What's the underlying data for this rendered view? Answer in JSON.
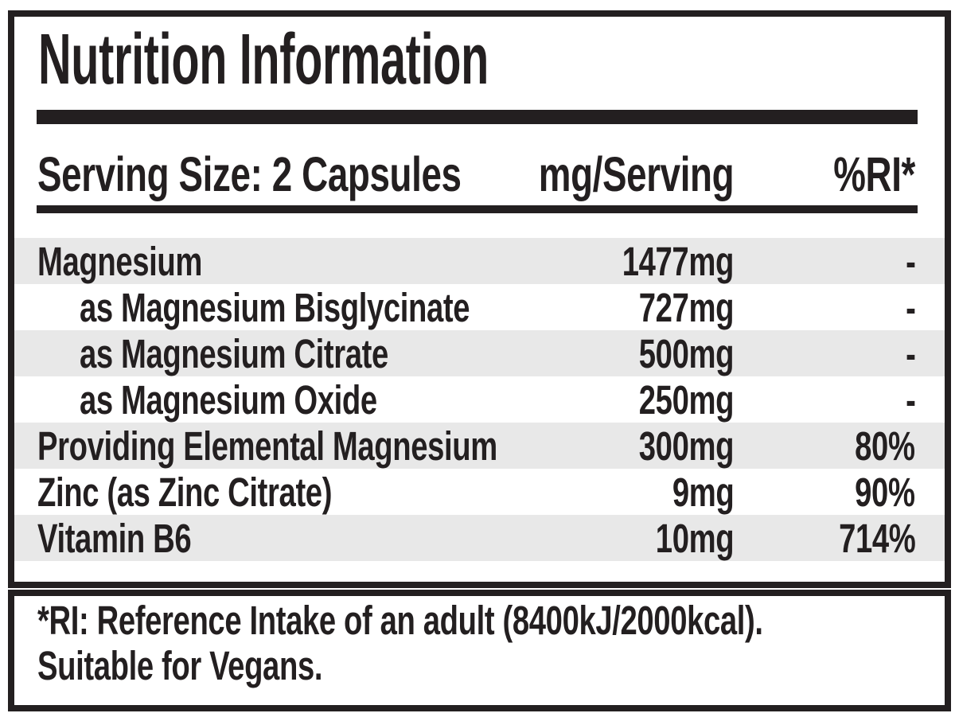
{
  "label": {
    "title": "Nutrition Information",
    "header": {
      "serving": "Serving Size: 2 Capsules",
      "amount": "mg/Serving",
      "ri": "%RI*"
    },
    "rows": [
      {
        "name": "Magnesium",
        "amount": "1477mg",
        "ri": "-"
      },
      {
        "name": "as Magnesium Bisglycinate",
        "amount": "727mg",
        "ri": "-"
      },
      {
        "name": "as Magnesium Citrate",
        "amount": "500mg",
        "ri": "-"
      },
      {
        "name": "as Magnesium Oxide",
        "amount": "250mg",
        "ri": "-"
      },
      {
        "name": "Providing Elemental Magnesium",
        "amount": "300mg",
        "ri": "80%"
      },
      {
        "name": "Zinc (as Zinc Citrate)",
        "amount": "9mg",
        "ri": "90%"
      },
      {
        "name": "Vitamin B6",
        "amount": "10mg",
        "ri": "714%"
      }
    ],
    "footnote": {
      "line1": "*RI: Reference Intake of an adult (8400kJ/2000kcal).",
      "line2": "Suitable for Vegans."
    },
    "colors": {
      "ink": "#231f20",
      "stripe": "#e8e8e8",
      "background": "#ffffff"
    }
  }
}
